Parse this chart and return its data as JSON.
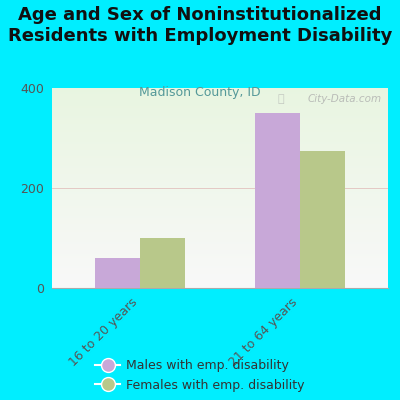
{
  "title": "Age and Sex of Noninstitutionalized\nResidents with Employment Disability",
  "subtitle": "Madison County, ID",
  "categories": [
    "16 to 20 years",
    "21 to 64 years"
  ],
  "males": [
    60,
    350
  ],
  "females": [
    100,
    275
  ],
  "male_color": "#C8A8D8",
  "female_color": "#B8C88A",
  "bg_color": "#00EEFF",
  "plot_bg_topleft": "#E8F5E0",
  "plot_bg_bottomright": "#F8F8F8",
  "ylim": [
    0,
    400
  ],
  "yticks": [
    0,
    200,
    400
  ],
  "bar_width": 0.28,
  "title_fontsize": 13,
  "subtitle_fontsize": 9,
  "watermark": "City-Data.com",
  "legend_male": "Males with emp. disability",
  "legend_female": "Females with emp. disability"
}
